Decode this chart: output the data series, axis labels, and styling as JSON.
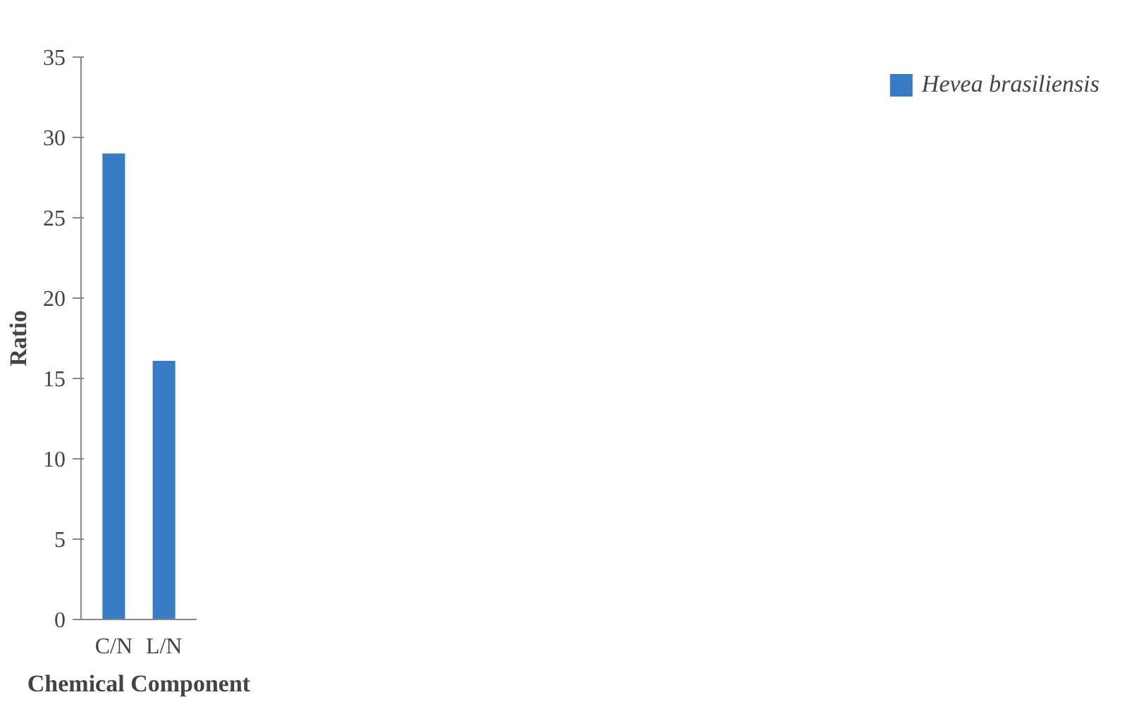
{
  "chart_data": {
    "type": "bar",
    "xlabel": "Chemical Component",
    "ylabel": "Ratio",
    "categories": [
      "C/N",
      "L/N"
    ],
    "series": [
      {
        "name": "Hevea brasiliensis",
        "color": "#3a7cc4",
        "values": [
          29,
          16.1
        ]
      }
    ],
    "ylim": [
      0,
      35
    ],
    "yticks": [
      0,
      5,
      10,
      15,
      20,
      25,
      30,
      35
    ],
    "grid": false,
    "legend": "right"
  }
}
